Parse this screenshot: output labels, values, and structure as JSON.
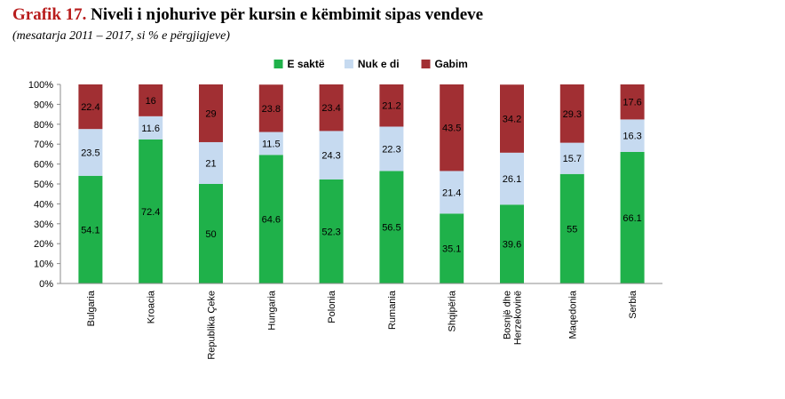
{
  "figure": {
    "label": "Grafik 17.",
    "title": "Niveli i njohurive për kursin e këmbimit sipas vendeve",
    "subtitle": "(mesatarja 2011 – 2017, si % e përgjigjeve)"
  },
  "chart_data": {
    "type": "bar",
    "stacked": true,
    "categories": [
      "Bulgaria",
      "Kroacia",
      "Republika Çeke",
      "Hungaria",
      "Polonia",
      "Rumania",
      "Shqipëria",
      "Bosnjë dhe Herzekovinë",
      "Maqedonia",
      "Serbia"
    ],
    "series": [
      {
        "name": "E saktë",
        "color": "#1fb14a",
        "values": [
          54.1,
          72.4,
          50,
          64.6,
          52.3,
          56.5,
          35.1,
          39.6,
          55,
          66.1
        ]
      },
      {
        "name": "Nuk e di",
        "color": "#c6daf0",
        "values": [
          23.5,
          11.6,
          21,
          11.5,
          24.3,
          22.3,
          21.4,
          26.1,
          15.7,
          16.3
        ]
      },
      {
        "name": "Gabim",
        "color": "#a12f33",
        "values": [
          22.4,
          16,
          29,
          23.8,
          23.4,
          21.2,
          43.5,
          34.2,
          29.3,
          17.6
        ]
      }
    ],
    "yticks": [
      "0%",
      "10%",
      "20%",
      "30%",
      "40%",
      "50%",
      "60%",
      "70%",
      "80%",
      "90%",
      "100%"
    ],
    "ylim": [
      0,
      100
    ],
    "legend": "top-center",
    "grid": false
  }
}
